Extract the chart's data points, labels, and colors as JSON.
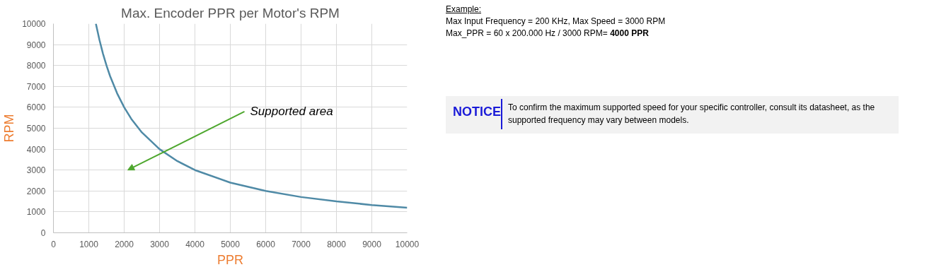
{
  "chart_data": {
    "type": "line",
    "title": "Max. Encoder PPR per Motor's RPM",
    "xlabel": "PPR",
    "ylabel": "RPM",
    "x": [
      1200,
      1300,
      1400,
      1500,
      1600,
      1800,
      2000,
      2200,
      2500,
      3000,
      3500,
      4000,
      5000,
      6000,
      7000,
      8000,
      9000,
      10000
    ],
    "series": [
      {
        "color": "#4f8aa6",
        "values": [
          10000,
          9230,
          8570,
          8000,
          7500,
          6670,
          6000,
          5450,
          4800,
          4000,
          3430,
          3000,
          2400,
          2000,
          1710,
          1500,
          1330,
          1200
        ]
      }
    ],
    "xlim": [
      0,
      10000
    ],
    "ylim": [
      0,
      10000
    ],
    "xticks": [
      0,
      1000,
      2000,
      3000,
      4000,
      5000,
      6000,
      7000,
      8000,
      9000,
      10000
    ],
    "yticks": [
      0,
      1000,
      2000,
      3000,
      4000,
      5000,
      6000,
      7000,
      8000,
      9000,
      10000
    ],
    "grid": true,
    "marker": "none",
    "line_style": "solid",
    "annotations": [
      "Supported area",
      "Example:",
      "Max Input Frequency = 200 KHz, Max Speed = 3000 RPM",
      "Max_PPR = 60 x 200.000 Hz / 3000 RPM=",
      "4000 PPR",
      "NOTICE",
      "To confirm the maximum supported speed for your specific controller, consult its datasheet, as the supported frequency may vary between models."
    ]
  }
}
